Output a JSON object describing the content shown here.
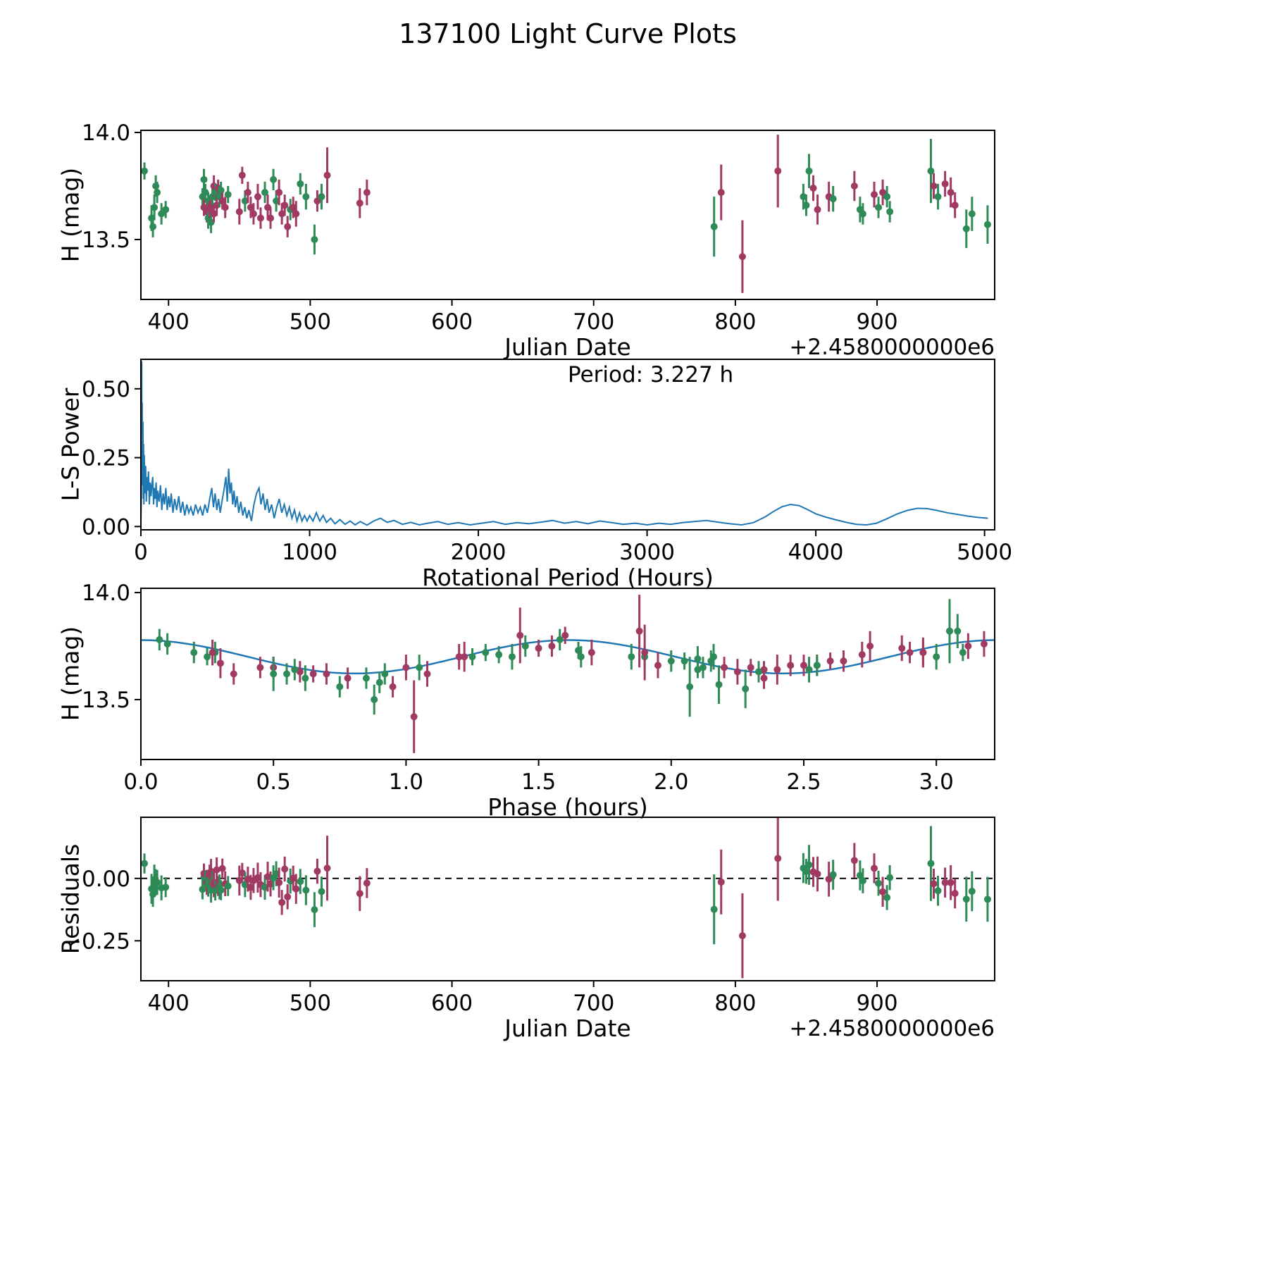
{
  "title": "137100 Light Curve Plots",
  "colors": {
    "green": "#2e8b57",
    "purple": "#a13a63",
    "line": "#1f77b4",
    "zero_line": "#000000"
  },
  "observations": [
    [
      383,
      3.05,
      13.82,
      0.04,
      0
    ],
    [
      388,
      0.62,
      13.6,
      0.06,
      0
    ],
    [
      389,
      0.75,
      13.56,
      0.05,
      0
    ],
    [
      390,
      1.05,
      13.65,
      0.06,
      0
    ],
    [
      391,
      1.45,
      13.75,
      0.05,
      0
    ],
    [
      392,
      0.28,
      13.72,
      0.05,
      0
    ],
    [
      395,
      0.55,
      13.62,
      0.05,
      0
    ],
    [
      398,
      2.1,
      13.64,
      0.04,
      0
    ],
    [
      424,
      0.25,
      13.7,
      0.04,
      0
    ],
    [
      425,
      0.07,
      13.78,
      0.05,
      0
    ],
    [
      425,
      2.3,
      13.65,
      0.04,
      1
    ],
    [
      426,
      1.3,
      13.72,
      0.04,
      0
    ],
    [
      427,
      0.6,
      13.63,
      0.05,
      1
    ],
    [
      428,
      2.05,
      13.68,
      0.04,
      0
    ],
    [
      428,
      0.85,
      13.6,
      0.05,
      0
    ],
    [
      429,
      2.35,
      13.64,
      0.04,
      1
    ],
    [
      430,
      2.55,
      13.66,
      0.05,
      1
    ],
    [
      430,
      0.9,
      13.58,
      0.05,
      0
    ],
    [
      431,
      1.25,
      13.7,
      0.04,
      0
    ],
    [
      432,
      1.55,
      13.75,
      0.05,
      1
    ],
    [
      432,
      0.65,
      13.62,
      0.04,
      1
    ],
    [
      433,
      3.1,
      13.72,
      0.04,
      0
    ],
    [
      434,
      2.5,
      13.66,
      0.05,
      1
    ],
    [
      435,
      1.5,
      13.74,
      0.04,
      1
    ],
    [
      436,
      1.9,
      13.7,
      0.05,
      0
    ],
    [
      437,
      1.65,
      13.73,
      0.04,
      0
    ],
    [
      438,
      2.6,
      13.68,
      0.04,
      1
    ],
    [
      440,
      0.5,
      13.65,
      0.05,
      1
    ],
    [
      442,
      1.35,
      13.71,
      0.04,
      0
    ],
    [
      450,
      2.25,
      13.63,
      0.06,
      1
    ],
    [
      452,
      1.6,
      13.8,
      0.04,
      1
    ],
    [
      454,
      2.0,
      13.68,
      0.05,
      0
    ],
    [
      456,
      2.9,
      13.72,
      0.05,
      1
    ],
    [
      458,
      0.45,
      13.65,
      0.05,
      1
    ],
    [
      460,
      0.7,
      13.62,
      0.05,
      1
    ],
    [
      463,
      1.2,
      13.7,
      0.06,
      1
    ],
    [
      465,
      2.35,
      13.6,
      0.05,
      1
    ],
    [
      468,
      0.2,
      13.72,
      0.05,
      0
    ],
    [
      470,
      1.0,
      13.65,
      0.06,
      1
    ],
    [
      472,
      0.78,
      13.6,
      0.05,
      1
    ],
    [
      474,
      1.58,
      13.78,
      0.05,
      0
    ],
    [
      476,
      2.15,
      13.68,
      0.05,
      0
    ],
    [
      478,
      2.95,
      13.72,
      0.06,
      1
    ],
    [
      480,
      0.35,
      13.62,
      0.05,
      1
    ],
    [
      482,
      2.45,
      13.66,
      0.05,
      1
    ],
    [
      484,
      0.95,
      13.56,
      0.05,
      1
    ],
    [
      486,
      0.58,
      13.64,
      0.05,
      0
    ],
    [
      488,
      2.2,
      13.65,
      0.05,
      1
    ],
    [
      490,
      1.08,
      13.62,
      0.06,
      1
    ],
    [
      493,
      0.1,
      13.76,
      0.05,
      0
    ],
    [
      497,
      1.85,
      13.7,
      0.06,
      0
    ],
    [
      503,
      0.88,
      13.5,
      0.07,
      0
    ],
    [
      505,
      2.65,
      13.68,
      0.05,
      1
    ],
    [
      508,
      1.4,
      13.7,
      0.06,
      0
    ],
    [
      512,
      1.43,
      13.8,
      0.13,
      1
    ],
    [
      535,
      0.3,
      13.67,
      0.07,
      1
    ],
    [
      540,
      0.27,
      13.72,
      0.06,
      1
    ],
    [
      785,
      2.07,
      13.56,
      0.14,
      0
    ],
    [
      790,
      1.9,
      13.72,
      0.13,
      1
    ],
    [
      805,
      1.03,
      13.42,
      0.17,
      1
    ],
    [
      830,
      1.88,
      13.82,
      0.17,
      1
    ],
    [
      848,
      2.16,
      13.7,
      0.06,
      0
    ],
    [
      850,
      2.55,
      13.66,
      0.05,
      0
    ],
    [
      852,
      3.08,
      13.82,
      0.08,
      0
    ],
    [
      855,
      2.87,
      13.74,
      0.06,
      1
    ],
    [
      858,
      2.4,
      13.64,
      0.07,
      1
    ],
    [
      866,
      1.22,
      13.7,
      0.07,
      1
    ],
    [
      869,
      2.1,
      13.69,
      0.06,
      0
    ],
    [
      884,
      2.75,
      13.75,
      0.07,
      1
    ],
    [
      888,
      2.52,
      13.64,
      0.06,
      0
    ],
    [
      890,
      0.92,
      13.62,
      0.05,
      0
    ],
    [
      898,
      2.72,
      13.71,
      0.06,
      1
    ],
    [
      901,
      2.12,
      13.65,
      0.05,
      0
    ],
    [
      904,
      1.7,
      13.72,
      0.06,
      1
    ],
    [
      907,
      1.66,
      13.7,
      0.05,
      0
    ],
    [
      909,
      2.33,
      13.63,
      0.05,
      0
    ],
    [
      938,
      3.05,
      13.82,
      0.15,
      0
    ],
    [
      940,
      3.12,
      13.75,
      0.06,
      1
    ],
    [
      943,
      3.0,
      13.7,
      0.06,
      0
    ],
    [
      948,
      3.18,
      13.76,
      0.06,
      1
    ],
    [
      952,
      2.95,
      13.72,
      0.07,
      1
    ],
    [
      955,
      1.95,
      13.66,
      0.06,
      1
    ],
    [
      963,
      2.28,
      13.55,
      0.09,
      0
    ],
    [
      967,
      0.5,
      13.62,
      0.08,
      0
    ],
    [
      978,
      2.18,
      13.57,
      0.09,
      0
    ]
  ],
  "chart_data": [
    {
      "id": "h_vs_jd",
      "type": "scatter",
      "xlabel": "Julian Date",
      "x_offset_label": "+2.4580000000e6",
      "ylabel": "H (mag)",
      "xlim": [
        380.5,
        983
      ],
      "ylim": [
        13.22,
        14.01
      ],
      "xticks": [
        400,
        500,
        600,
        700,
        800,
        900
      ],
      "xtick_labels": [
        "400",
        "500",
        "600",
        "700",
        "800",
        "900"
      ],
      "yticks": [
        13.5,
        14.0
      ],
      "ytick_labels": [
        "13.5",
        "14.0"
      ],
      "x_field": "jd",
      "y_field": "h",
      "points_source": "observations",
      "groups": [
        {
          "name": "group_green",
          "color_key": "green"
        },
        {
          "name": "group_purple",
          "color_key": "purple"
        }
      ]
    },
    {
      "id": "periodogram",
      "type": "line",
      "xlabel": "Rotational Period (Hours)",
      "ylabel": "L-S Power",
      "annotation": "Period: 3.227 h",
      "xlim": [
        0,
        5060
      ],
      "ylim": [
        -0.012,
        0.607
      ],
      "xticks": [
        0,
        1000,
        2000,
        3000,
        4000,
        5000
      ],
      "xtick_labels": [
        "0",
        "1000",
        "2000",
        "3000",
        "4000",
        "5000"
      ],
      "yticks": [
        0.0,
        0.25,
        0.5
      ],
      "ytick_labels": [
        "0.00",
        "0.25",
        "0.50"
      ],
      "line": [
        [
          0,
          0.02
        ],
        [
          3,
          0.12
        ],
        [
          5,
          0.6
        ],
        [
          6,
          0.25
        ],
        [
          8,
          0.45
        ],
        [
          10,
          0.15
        ],
        [
          12,
          0.38
        ],
        [
          14,
          0.1
        ],
        [
          16,
          0.3
        ],
        [
          18,
          0.08
        ],
        [
          20,
          0.26
        ],
        [
          24,
          0.12
        ],
        [
          28,
          0.22
        ],
        [
          32,
          0.09
        ],
        [
          36,
          0.18
        ],
        [
          40,
          0.13
        ],
        [
          45,
          0.2
        ],
        [
          50,
          0.08
        ],
        [
          55,
          0.16
        ],
        [
          60,
          0.11
        ],
        [
          65,
          0.15
        ],
        [
          70,
          0.18
        ],
        [
          75,
          0.08
        ],
        [
          80,
          0.14
        ],
        [
          85,
          0.1
        ],
        [
          90,
          0.16
        ],
        [
          95,
          0.07
        ],
        [
          100,
          0.13
        ],
        [
          108,
          0.09
        ],
        [
          116,
          0.15
        ],
        [
          124,
          0.06
        ],
        [
          132,
          0.12
        ],
        [
          140,
          0.08
        ],
        [
          148,
          0.14
        ],
        [
          156,
          0.06
        ],
        [
          164,
          0.11
        ],
        [
          172,
          0.07
        ],
        [
          180,
          0.12
        ],
        [
          190,
          0.05
        ],
        [
          200,
          0.1
        ],
        [
          212,
          0.06
        ],
        [
          224,
          0.11
        ],
        [
          236,
          0.05
        ],
        [
          248,
          0.09
        ],
        [
          260,
          0.04
        ],
        [
          272,
          0.08
        ],
        [
          284,
          0.05
        ],
        [
          296,
          0.07
        ],
        [
          310,
          0.04
        ],
        [
          324,
          0.08
        ],
        [
          338,
          0.05
        ],
        [
          352,
          0.07
        ],
        [
          366,
          0.04
        ],
        [
          380,
          0.08
        ],
        [
          394,
          0.05
        ],
        [
          408,
          0.1
        ],
        [
          420,
          0.14
        ],
        [
          430,
          0.07
        ],
        [
          440,
          0.12
        ],
        [
          450,
          0.06
        ],
        [
          460,
          0.1
        ],
        [
          470,
          0.05
        ],
        [
          480,
          0.09
        ],
        [
          492,
          0.13
        ],
        [
          504,
          0.18
        ],
        [
          512,
          0.09
        ],
        [
          520,
          0.21
        ],
        [
          528,
          0.12
        ],
        [
          536,
          0.16
        ],
        [
          544,
          0.08
        ],
        [
          552,
          0.13
        ],
        [
          560,
          0.07
        ],
        [
          570,
          0.11
        ],
        [
          580,
          0.05
        ],
        [
          592,
          0.09
        ],
        [
          604,
          0.04
        ],
        [
          616,
          0.07
        ],
        [
          628,
          0.03
        ],
        [
          640,
          0.06
        ],
        [
          655,
          0.02
        ],
        [
          670,
          0.08
        ],
        [
          685,
          0.12
        ],
        [
          700,
          0.14
        ],
        [
          712,
          0.08
        ],
        [
          724,
          0.12
        ],
        [
          736,
          0.06
        ],
        [
          748,
          0.1
        ],
        [
          760,
          0.05
        ],
        [
          775,
          0.08
        ],
        [
          790,
          0.03
        ],
        [
          805,
          0.07
        ],
        [
          820,
          0.1
        ],
        [
          835,
          0.05
        ],
        [
          850,
          0.08
        ],
        [
          865,
          0.04
        ],
        [
          880,
          0.07
        ],
        [
          895,
          0.03
        ],
        [
          910,
          0.06
        ],
        [
          925,
          0.02
        ],
        [
          940,
          0.05
        ],
        [
          955,
          0.02
        ],
        [
          970,
          0.04
        ],
        [
          985,
          0.02
        ],
        [
          1000,
          0.04
        ],
        [
          1020,
          0.02
        ],
        [
          1040,
          0.05
        ],
        [
          1060,
          0.02
        ],
        [
          1080,
          0.04
        ],
        [
          1100,
          0.015
        ],
        [
          1125,
          0.03
        ],
        [
          1150,
          0.01
        ],
        [
          1180,
          0.025
        ],
        [
          1210,
          0.008
        ],
        [
          1240,
          0.02
        ],
        [
          1270,
          0.006
        ],
        [
          1300,
          0.018
        ],
        [
          1340,
          0.005
        ],
        [
          1380,
          0.02
        ],
        [
          1420,
          0.03
        ],
        [
          1460,
          0.015
        ],
        [
          1500,
          0.022
        ],
        [
          1550,
          0.008
        ],
        [
          1600,
          0.015
        ],
        [
          1650,
          0.006
        ],
        [
          1700,
          0.012
        ],
        [
          1760,
          0.018
        ],
        [
          1820,
          0.008
        ],
        [
          1880,
          0.014
        ],
        [
          1950,
          0.006
        ],
        [
          2020,
          0.012
        ],
        [
          2090,
          0.018
        ],
        [
          2160,
          0.008
        ],
        [
          2230,
          0.014
        ],
        [
          2300,
          0.01
        ],
        [
          2370,
          0.016
        ],
        [
          2440,
          0.022
        ],
        [
          2510,
          0.012
        ],
        [
          2580,
          0.018
        ],
        [
          2650,
          0.01
        ],
        [
          2720,
          0.02
        ],
        [
          2790,
          0.014
        ],
        [
          2860,
          0.008
        ],
        [
          2930,
          0.012
        ],
        [
          3000,
          0.006
        ],
        [
          3070,
          0.012
        ],
        [
          3140,
          0.008
        ],
        [
          3210,
          0.014
        ],
        [
          3280,
          0.018
        ],
        [
          3350,
          0.022
        ],
        [
          3420,
          0.016
        ],
        [
          3490,
          0.01
        ],
        [
          3560,
          0.006
        ],
        [
          3630,
          0.014
        ],
        [
          3700,
          0.035
        ],
        [
          3750,
          0.055
        ],
        [
          3800,
          0.072
        ],
        [
          3850,
          0.08
        ],
        [
          3900,
          0.076
        ],
        [
          3950,
          0.062
        ],
        [
          4000,
          0.046
        ],
        [
          4060,
          0.034
        ],
        [
          4120,
          0.024
        ],
        [
          4180,
          0.015
        ],
        [
          4240,
          0.008
        ],
        [
          4300,
          0.006
        ],
        [
          4360,
          0.012
        ],
        [
          4420,
          0.028
        ],
        [
          4480,
          0.045
        ],
        [
          4540,
          0.058
        ],
        [
          4600,
          0.066
        ],
        [
          4660,
          0.065
        ],
        [
          4720,
          0.058
        ],
        [
          4780,
          0.05
        ],
        [
          4840,
          0.044
        ],
        [
          4900,
          0.038
        ],
        [
          4960,
          0.033
        ],
        [
          5020,
          0.03
        ]
      ]
    },
    {
      "id": "phased_lightcurve",
      "type": "scatter_with_fit",
      "xlabel": "Phase (hours)",
      "ylabel": "H (mag)",
      "xlim": [
        0,
        3.22
      ],
      "ylim": [
        13.22,
        14.02
      ],
      "xticks": [
        0,
        0.5,
        1.0,
        1.5,
        2.0,
        2.5,
        3.0
      ],
      "xtick_labels": [
        "0.0",
        "0.5",
        "1.0",
        "1.5",
        "2.0",
        "2.5",
        "3.0"
      ],
      "yticks": [
        13.5,
        14.0
      ],
      "ytick_labels": [
        "13.5",
        "14.0"
      ],
      "x_field": "phase",
      "y_field": "h",
      "points_source": "observations",
      "fit": {
        "mean": 13.7,
        "amplitude": 0.078,
        "period_hours": 1.6135,
        "phase_of_max": 0.0
      },
      "groups": [
        {
          "name": "group_green",
          "color_key": "green"
        },
        {
          "name": "group_purple",
          "color_key": "purple"
        }
      ]
    },
    {
      "id": "residuals_vs_jd",
      "type": "scatter",
      "xlabel": "Julian Date",
      "x_offset_label": "+2.4580000000e6",
      "ylabel": "Residuals",
      "xlim": [
        380.5,
        983
      ],
      "ylim": [
        -0.41,
        0.245
      ],
      "xticks": [
        400,
        500,
        600,
        700,
        800,
        900
      ],
      "xtick_labels": [
        "400",
        "500",
        "600",
        "700",
        "800",
        "900"
      ],
      "yticks": [
        -0.25,
        0.0
      ],
      "ytick_labels": [
        "−0.25",
        "0.00"
      ],
      "x_field": "jd",
      "y_field": "res",
      "points_source": "observations",
      "zero_line": true,
      "groups": [
        {
          "name": "group_green",
          "color_key": "green"
        },
        {
          "name": "group_purple",
          "color_key": "purple"
        }
      ]
    }
  ]
}
